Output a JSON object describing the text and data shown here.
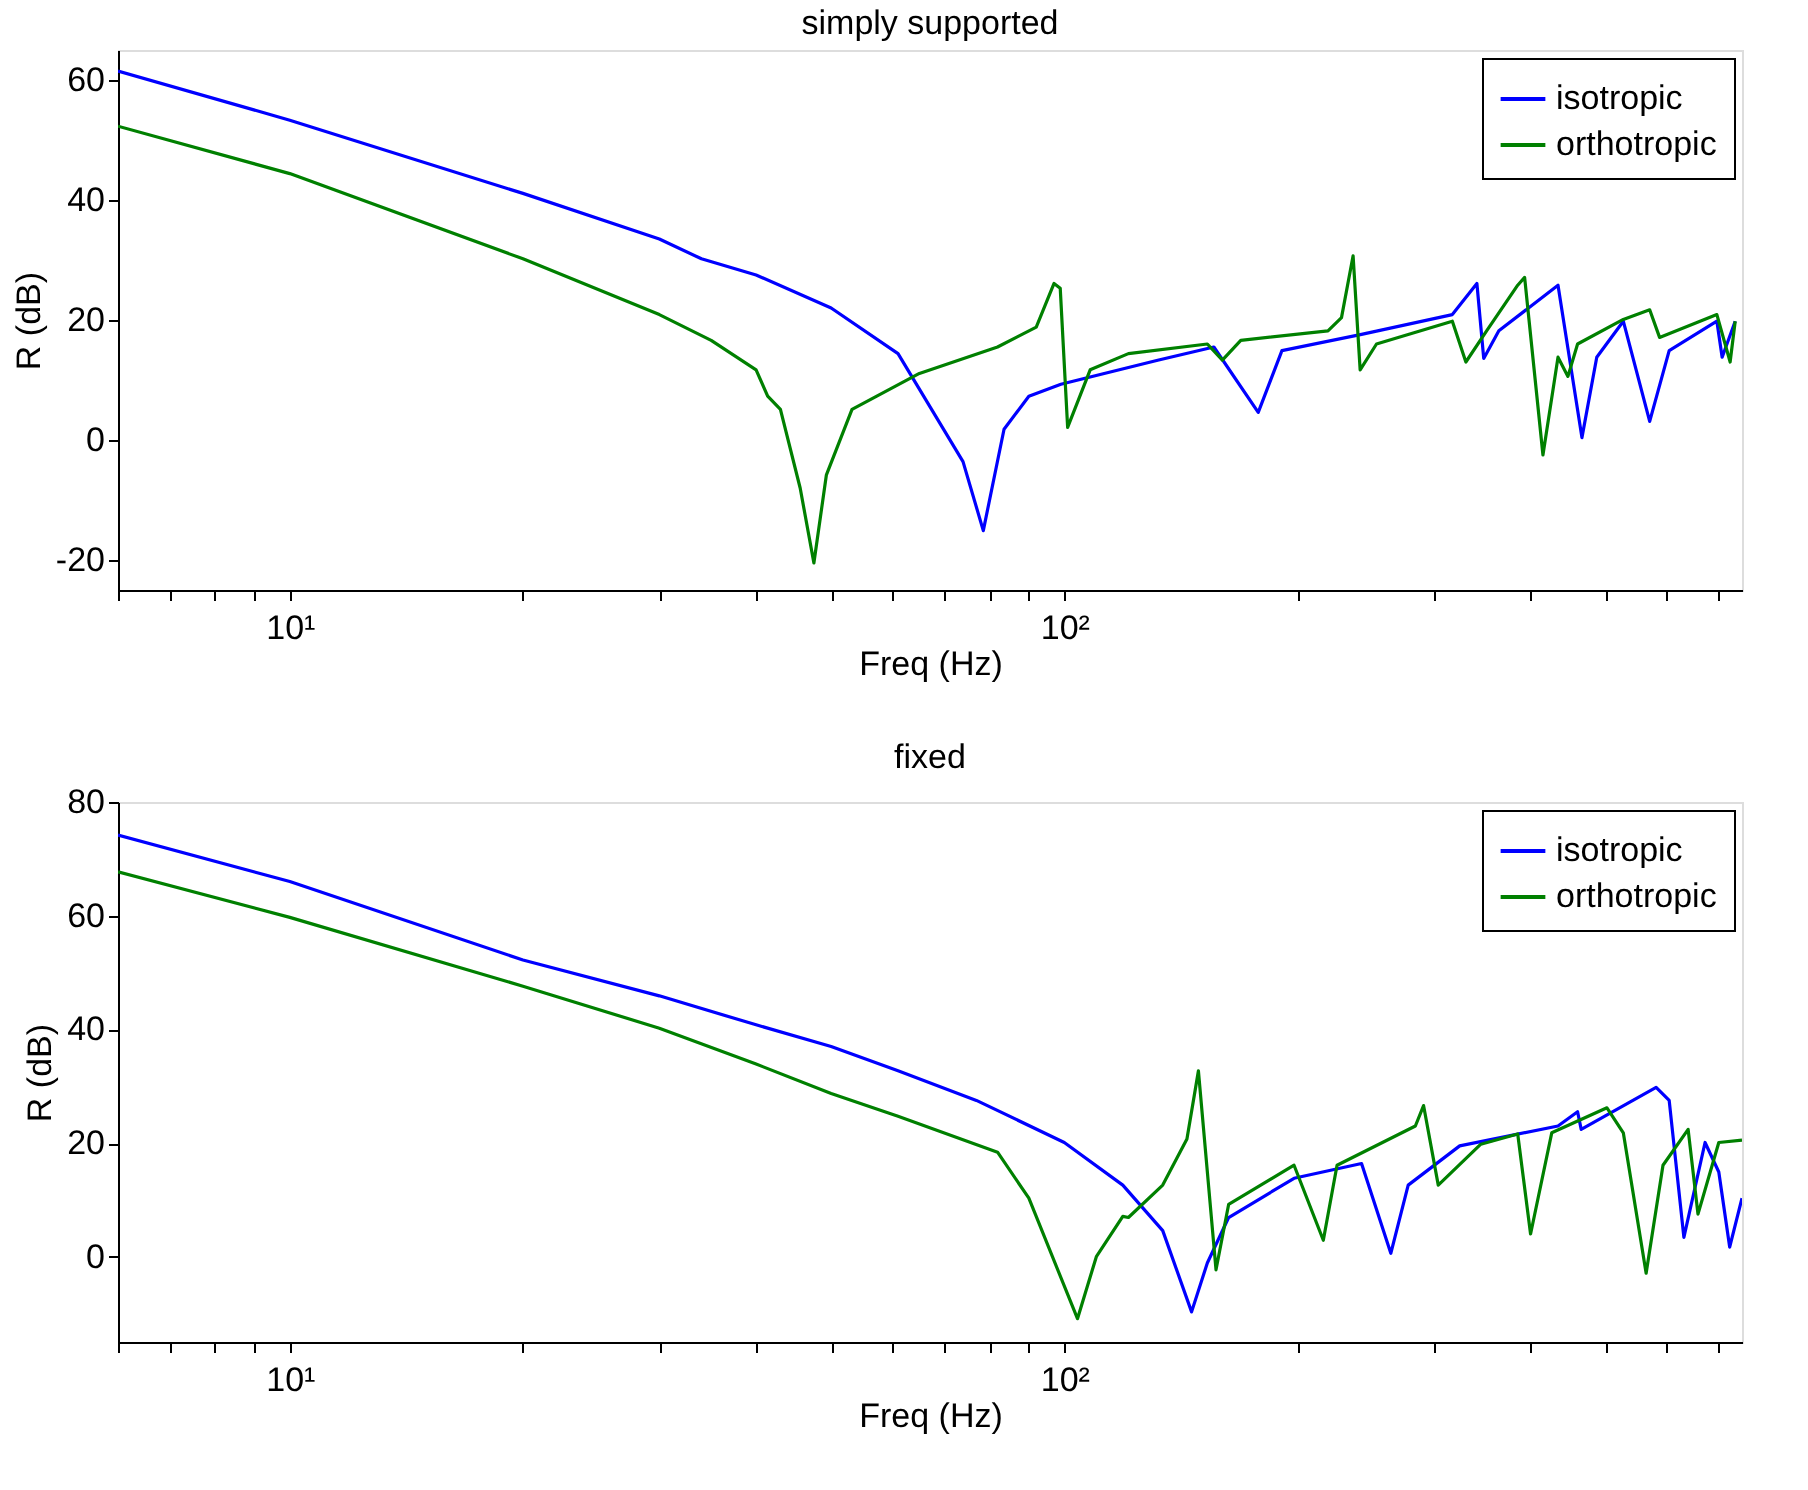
{
  "chart_data": [
    {
      "type": "line",
      "title": "simply supported",
      "xlabel": "Freq (Hz)",
      "ylabel": "R (dB)",
      "log": "x",
      "grid": false,
      "legend": "top right",
      "line_style": "solid",
      "xlim": [
        6,
        750
      ],
      "ylim": [
        -25,
        65
      ],
      "xticks": [
        {
          "value": 6,
          "label": null
        },
        {
          "value": 7,
          "label": null
        },
        {
          "value": 8,
          "label": null
        },
        {
          "value": 9,
          "label": null
        },
        {
          "value": 10,
          "label": "10¹"
        },
        {
          "value": 20,
          "label": null
        },
        {
          "value": 30,
          "label": null
        },
        {
          "value": 40,
          "label": null
        },
        {
          "value": 50,
          "label": null
        },
        {
          "value": 60,
          "label": null
        },
        {
          "value": 70,
          "label": null
        },
        {
          "value": 80,
          "label": null
        },
        {
          "value": 90,
          "label": null
        },
        {
          "value": 100,
          "label": "10²"
        },
        {
          "value": 200,
          "label": null
        },
        {
          "value": 300,
          "label": null
        },
        {
          "value": 400,
          "label": null
        },
        {
          "value": 500,
          "label": null
        },
        {
          "value": 600,
          "label": null
        },
        {
          "value": 700,
          "label": null
        }
      ],
      "yticks": [
        -20,
        0,
        20,
        40,
        60
      ],
      "series": [
        {
          "name": "isotropic",
          "color": "#0000ff",
          "x": [
            6,
            10,
            20,
            30,
            34,
            40,
            50,
            61,
            74,
            78.6,
            83.6,
            90,
            99,
            132,
            156,
            178,
            191,
            242,
            317,
            341,
            348,
            364,
            434,
            466,
            487,
            527,
            570,
            604,
            696,
            707,
            735
          ],
          "values": [
            61.5,
            53.3,
            41.1,
            33.5,
            30.2,
            27.5,
            22,
            14.4,
            -3.6,
            -15.1,
            1.8,
            7.3,
            9.3,
            13.3,
            15.5,
            4.6,
            14.9,
            17.6,
            20.9,
            26.1,
            13.6,
            18.2,
            25.8,
            0.4,
            13.8,
            19.8,
            3.1,
            14.9,
            19.8,
            13.8,
            19.8
          ]
        },
        {
          "name": "orthotropic",
          "color": "#008000",
          "x": [
            6,
            10,
            20,
            30,
            35,
            40,
            41.4,
            43,
            45.6,
            47.5,
            49.3,
            53.2,
            65,
            82,
            92,
            97,
            98.8,
            101,
            108,
            121,
            153,
            160,
            169,
            219,
            228,
            236,
            241,
            253,
            317,
            330,
            351,
            385,
            393,
            415,
            434,
            447,
            460,
            527,
            570,
            587,
            696,
            724,
            735
          ],
          "values": [
            52.3,
            44.4,
            30.2,
            20.9,
            16.6,
            11.7,
            7.3,
            5.1,
            -8,
            -20.5,
            -5.8,
            5.1,
            11.1,
            15.5,
            18.8,
            26.1,
            25.3,
            2.1,
            11.7,
            14.4,
            16,
            13.3,
            16.6,
            18.2,
            20.4,
            30.7,
            11.7,
            16,
            19.8,
            13,
            18.2,
            25.8,
            27.1,
            -2.5,
            13.8,
            10.6,
            16,
            20.1,
            21.7,
            17.1,
            20.9,
            13,
            19.8
          ]
        }
      ]
    },
    {
      "type": "line",
      "title": "fixed",
      "xlabel": "Freq (Hz)",
      "ylabel": "R (dB)",
      "log": "x",
      "grid": false,
      "legend": "top right",
      "line_style": "solid",
      "xlim": [
        6,
        750
      ],
      "ylim": [
        -15,
        80
      ],
      "xticks": [
        {
          "value": 6,
          "label": null
        },
        {
          "value": 7,
          "label": null
        },
        {
          "value": 8,
          "label": null
        },
        {
          "value": 9,
          "label": null
        },
        {
          "value": 10,
          "label": "10¹"
        },
        {
          "value": 20,
          "label": null
        },
        {
          "value": 30,
          "label": null
        },
        {
          "value": 40,
          "label": null
        },
        {
          "value": 50,
          "label": null
        },
        {
          "value": 60,
          "label": null
        },
        {
          "value": 70,
          "label": null
        },
        {
          "value": 80,
          "label": null
        },
        {
          "value": 90,
          "label": null
        },
        {
          "value": 100,
          "label": "10²"
        },
        {
          "value": 200,
          "label": null
        },
        {
          "value": 300,
          "label": null
        },
        {
          "value": 400,
          "label": null
        },
        {
          "value": 500,
          "label": null
        },
        {
          "value": 600,
          "label": null
        },
        {
          "value": 700,
          "label": null
        }
      ],
      "yticks": [
        0,
        20,
        40,
        60,
        80
      ],
      "series": [
        {
          "name": "isotropic",
          "color": "#0000ff",
          "x": [
            6,
            10,
            20,
            30,
            40,
            50,
            61,
            77,
            100,
            119,
            134,
            146,
            153,
            163,
            198,
            242,
            264,
            278,
            324,
            434,
            460,
            465,
            581,
            604,
            631,
            672,
            700,
            723,
            750
          ],
          "values": [
            74.2,
            66,
            52.2,
            45.9,
            40.8,
            37,
            32.7,
            27.5,
            20.1,
            12.6,
            4.6,
            -9.7,
            -1.1,
            6.9,
            13.8,
            16.4,
            0.6,
            12.6,
            19.5,
            23,
            25.5,
            22.4,
            29.8,
            27.5,
            3.4,
            20.1,
            14.9,
            1.7,
            10.3
          ]
        },
        {
          "name": "orthotropic",
          "color": "#008000",
          "x": [
            6,
            10,
            20,
            30,
            40,
            50,
            61,
            82,
            90,
            104,
            110,
            119,
            121,
            134,
            144,
            149,
            157,
            163,
            198,
            216,
            225,
            284,
            291,
            304,
            345,
            385,
            400,
            426,
            502,
            527,
            564,
            593,
            639,
            658,
            700,
            750
          ],
          "values": [
            67.7,
            59.7,
            47.6,
            40.2,
            33.9,
            28.7,
            24.7,
            18.4,
            10.3,
            -10.9,
            0,
            7.1,
            6.9,
            12.6,
            20.7,
            32.7,
            -2.3,
            9.2,
            16.1,
            2.9,
            16.1,
            23,
            26.6,
            12.6,
            19.8,
            21.6,
            4,
            21.8,
            26.2,
            21.8,
            -2.9,
            16.1,
            22.4,
            7.5,
            20.1,
            20.5
          ]
        }
      ]
    }
  ]
}
